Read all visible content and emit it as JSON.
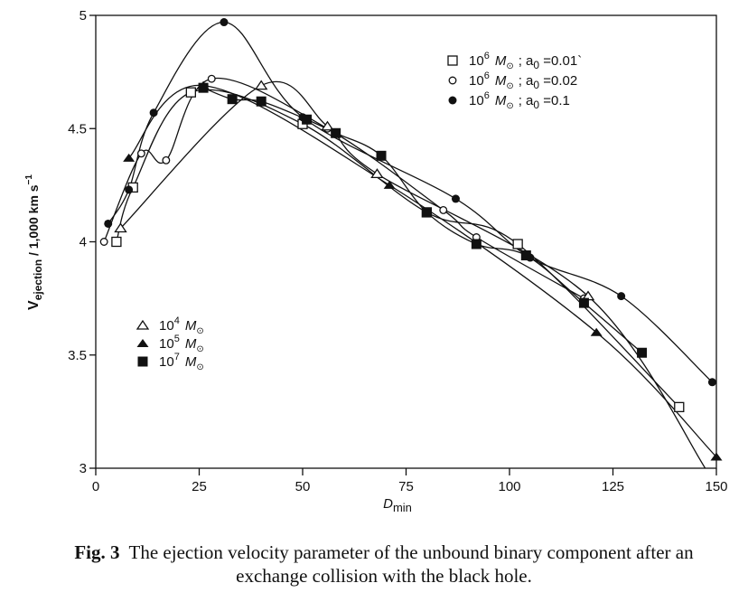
{
  "chart_data": {
    "type": "line",
    "title": "",
    "xlabel": "D",
    "xlabel_sub": "min",
    "ylabel": "V",
    "ylabel_sub": "ejection",
    "ylabel_units": " / 1,000 km s",
    "ylabel_sup": "−1",
    "xlim": [
      0,
      150
    ],
    "ylim": [
      3,
      5
    ],
    "xticks": [
      "0",
      "25",
      "50",
      "75",
      "100",
      "125",
      "150"
    ],
    "xtick_values": [
      0,
      25,
      50,
      75,
      100,
      125,
      150
    ],
    "yticks": [
      "3",
      "3.5",
      "4",
      "4.5",
      "5"
    ],
    "ytick_values": [
      3,
      3.5,
      4,
      4.5,
      5
    ],
    "grid": false,
    "legends": [
      {
        "placement": "top-right",
        "entries": [
          {
            "series": "s1",
            "base": "10",
            "exp": "6",
            "unit": "M",
            "param": "; a",
            "param_sub": "0",
            "value": " =0.01`"
          },
          {
            "series": "s2",
            "base": "10",
            "exp": "6",
            "unit": "M",
            "param": "; a",
            "param_sub": "0",
            "value": " =0.02"
          },
          {
            "series": "s3",
            "base": "10",
            "exp": "6",
            "unit": "M",
            "param": "; a",
            "param_sub": "0",
            "value": " =0.1"
          }
        ]
      },
      {
        "placement": "center-left",
        "entries": [
          {
            "series": "s4",
            "base": "10",
            "exp": "4",
            "unit": "M"
          },
          {
            "series": "s5",
            "base": "10",
            "exp": "5",
            "unit": "M"
          },
          {
            "series": "s6",
            "base": "10",
            "exp": "7",
            "unit": "M"
          }
        ]
      }
    ],
    "series": [
      {
        "id": "s1",
        "name": "10^6 M☉ ; a0 = 0.01",
        "marker": "open-square",
        "x": [
          5,
          9,
          23,
          50,
          80,
          102,
          141
        ],
        "y": [
          4.0,
          4.24,
          4.66,
          4.52,
          4.13,
          3.99,
          3.27
        ]
      },
      {
        "id": "s2",
        "name": "10^6 M☉ ; a0 = 0.02",
        "marker": "open-circle",
        "x": [
          2,
          11,
          17,
          28,
          56,
          84,
          92,
          118
        ],
        "y": [
          4.0,
          4.39,
          4.36,
          4.72,
          4.5,
          4.14,
          4.02,
          3.75
        ]
      },
      {
        "id": "s3",
        "name": "10^6 M☉ ; a0 = 0.1",
        "marker": "filled-circle",
        "x": [
          3,
          8,
          14,
          31,
          50,
          87,
          105,
          127,
          149
        ],
        "y": [
          4.08,
          4.23,
          4.57,
          4.97,
          4.55,
          4.19,
          3.93,
          3.76,
          3.38
        ]
      },
      {
        "id": "s4",
        "name": "10^4 M☉",
        "marker": "open-triangle",
        "x": [
          6,
          40,
          56,
          68,
          119,
          148
        ],
        "y": [
          4.06,
          4.69,
          4.51,
          4.3,
          3.76,
          2.98
        ]
      },
      {
        "id": "s5",
        "name": "10^5 M☉",
        "marker": "filled-triangle",
        "x": [
          8,
          26,
          71,
          121,
          150
        ],
        "y": [
          4.37,
          4.69,
          4.25,
          3.6,
          3.05
        ]
      },
      {
        "id": "s6",
        "name": "10^7 M☉",
        "marker": "filled-square",
        "x": [
          26,
          33,
          40,
          51,
          58,
          69,
          80,
          92,
          104,
          118,
          132
        ],
        "y": [
          4.68,
          4.63,
          4.62,
          4.54,
          4.48,
          4.38,
          4.13,
          3.99,
          3.94,
          3.73,
          3.51
        ]
      }
    ]
  },
  "caption": {
    "label": "Fig. 3",
    "text": "The ejection velocity parameter of the unbound binary component after an exchange collision with the black hole."
  },
  "colors": {
    "ink": "#111111",
    "background": "#ffffff"
  }
}
